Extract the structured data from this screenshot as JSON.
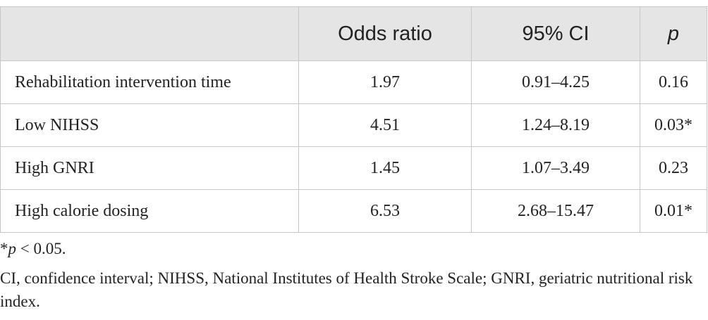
{
  "table": {
    "header": [
      "Odds ratio",
      "95% CI",
      "p"
    ],
    "rows": [
      [
        "Rehabilitation intervention time",
        "1.97",
        "0.91–4.25",
        "0.16"
      ],
      [
        "Low NIHSS",
        "4.51",
        "1.24–8.19",
        "0.03*"
      ],
      [
        "High GNRI",
        "1.45",
        "1.07–3.49",
        "0.23"
      ],
      [
        "High calorie dosing",
        "6.53",
        "2.68–15.47",
        "0.01*"
      ]
    ]
  },
  "footnotes": {
    "significance": {
      "symbol": "*",
      "variable": "p",
      "condition": " < 0.05."
    },
    "abbreviations": "CI, confidence interval; NIHSS, National Institutes of Health Stroke Scale; GNRI, geriatric nutritional risk index."
  }
}
